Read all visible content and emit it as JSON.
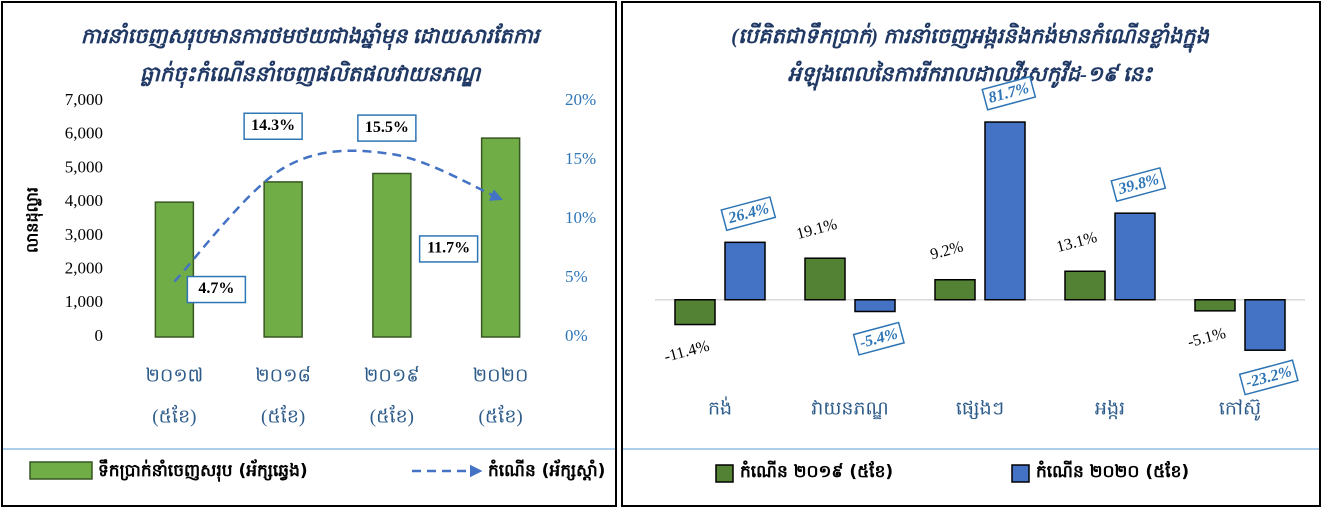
{
  "charts": [
    {
      "type": "bar_line",
      "title": [
        "ការនាំចេញសរុបមានការថមថយជាងឆ្នាំមុន ដោយសារតែការ",
        "ធ្លាក់ចុះកំណើននាំចេញផលិតផលវាយនភណ្ឌ"
      ],
      "y_label": "លានដុល្លារ",
      "categories": [
        [
          "២០១៧",
          "(៥ខែ)"
        ],
        [
          "២០១៨",
          "(៥ខែ)"
        ],
        [
          "២០១៩",
          "(៥ខែ)"
        ],
        [
          "២០២០",
          "(៥ខែ)"
        ]
      ],
      "series": [
        {
          "name": "ទឹកប្រាក់នាំចេញសរុប (អ័ក្សឆ្វេង)",
          "color": "#70ad47",
          "values": [
            4000,
            4600,
            4850,
            5900
          ]
        },
        {
          "name": "កំណើន (អ័ក្សស្តាំ)",
          "color": "#4472c4",
          "axis": "y2",
          "values": [
            4.7,
            14.3,
            15.5,
            11.7
          ],
          "value_labels": [
            "4.7%",
            "14.3%",
            "15.5%",
            "11.7%"
          ]
        }
      ],
      "ylim": [
        0,
        7000
      ],
      "yticks": [
        0,
        {
          "value": 1000,
          "label": "1,000"
        },
        {
          "value": 2000,
          "label": "2,000"
        },
        {
          "value": 3000,
          "label": "3,000"
        },
        {
          "value": 4000,
          "label": "4,000"
        },
        {
          "value": 5000,
          "label": "5,000"
        },
        {
          "value": 6000,
          "label": "6,000"
        },
        {
          "value": 7000,
          "label": "7,000"
        }
      ],
      "y2lim": [
        0,
        20
      ],
      "y2ticks": [
        {
          "value": 0,
          "label": "0%"
        },
        {
          "value": 5,
          "label": "5%"
        },
        {
          "value": 10,
          "label": "10%"
        },
        {
          "value": 15,
          "label": "15%"
        },
        {
          "value": 20,
          "label": "20%"
        }
      ]
    },
    {
      "type": "bar",
      "title": [
        "(បើគិតជាទឹកប្រាក់) ការនាំចេញអង្ករនិងកង់មានកំណើនខ្លាំងក្នុង",
        "អំឡុងពេលនៃការរីករាលដាលវីរុសកូវីដ-១៩ នេះ"
      ],
      "categories": [
        "កង់",
        "វាយនភណ្ឌ",
        "ផ្សេងៗ",
        "អង្ករ",
        "កៅស៊ូ"
      ],
      "series": [
        {
          "name": "កំណើន ២០១៩ (៥ខែ)",
          "color": "#548235",
          "values": [
            -11.4,
            19.1,
            9.2,
            13.1,
            -5.1
          ],
          "value_labels": [
            "-11.4%",
            "19.1%",
            "9.2%",
            "13.1%",
            "-5.1%"
          ]
        },
        {
          "name": "កំណើន ២០២០ (៥ខែ)",
          "color": "#4472c4",
          "values": [
            26.4,
            -5.4,
            81.7,
            39.8,
            -23.2
          ],
          "value_labels": [
            "26.4%",
            "-5.4%",
            "81.7%",
            "39.8%",
            "-23.2%"
          ]
        }
      ],
      "ylim": [
        -30,
        90
      ]
    }
  ]
}
